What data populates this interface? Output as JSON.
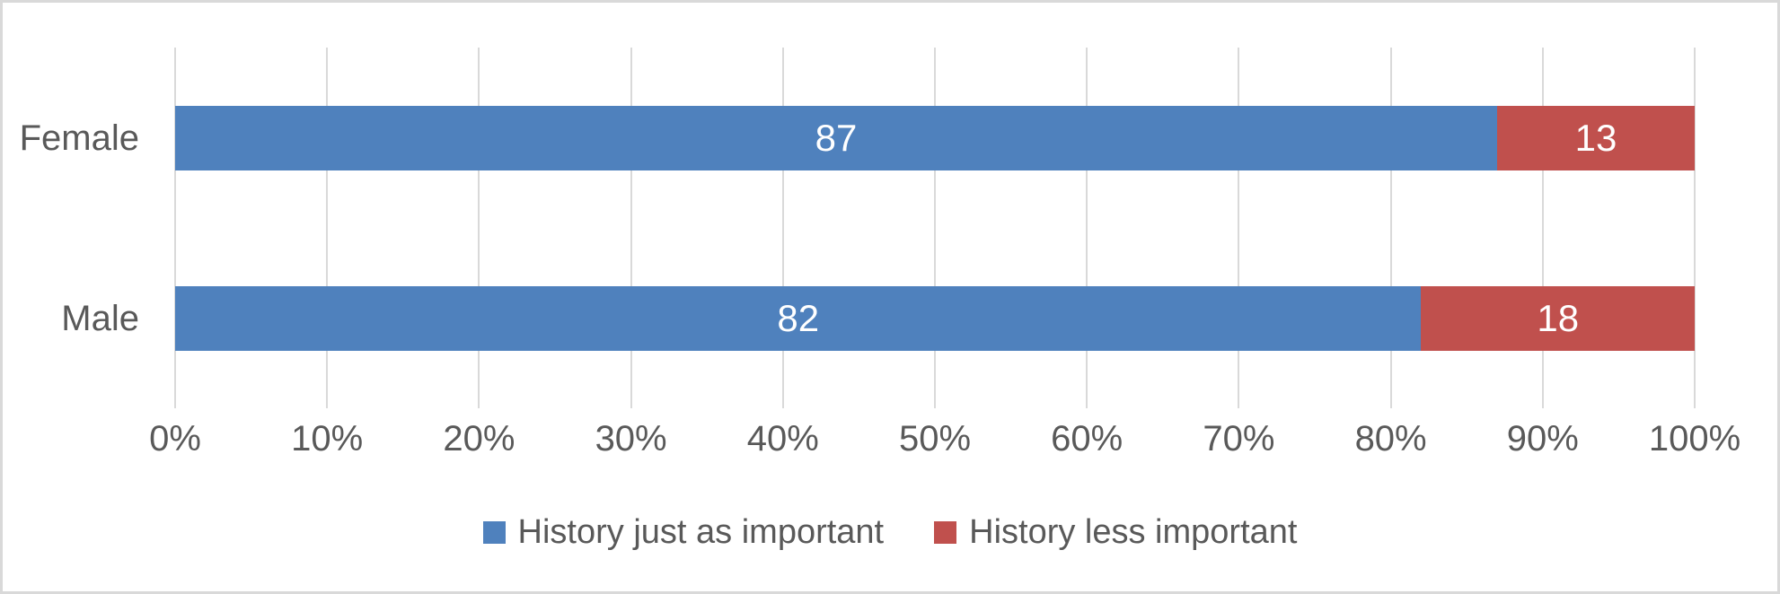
{
  "chart_data": {
    "type": "bar",
    "orientation": "horizontal",
    "stacked": true,
    "title": "",
    "categories": [
      "Female",
      "Male"
    ],
    "series": [
      {
        "name": "History just as important",
        "color": "#4F81BD",
        "values": [
          87,
          82
        ]
      },
      {
        "name": "History less important",
        "color": "#C0504D",
        "values": [
          13,
          18
        ]
      }
    ],
    "x_axis": {
      "min": 0,
      "max": 100,
      "ticks": [
        "0%",
        "10%",
        "20%",
        "30%",
        "40%",
        "50%",
        "60%",
        "70%",
        "80%",
        "90%",
        "100%"
      ]
    },
    "grid": true,
    "legend_position": "bottom",
    "data_labels": true
  },
  "styles": {
    "background": "#FFFFFF",
    "border_color": "#D9D9D9",
    "gridline_color": "#D9D9D9",
    "text_color": "#595959",
    "data_label_color": "#FFFFFF"
  }
}
